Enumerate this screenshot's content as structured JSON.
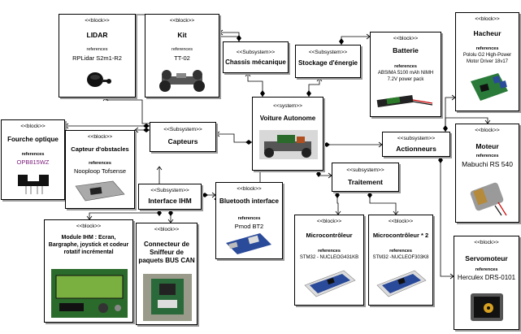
{
  "diagram": {
    "system": {
      "stereotype": "<<system>>",
      "name": "Voiture Autonome"
    },
    "subsystems": {
      "chassis": {
        "stereotype": "<<Subsystem>>",
        "name": "Chassis mécanique"
      },
      "stockage": {
        "stereotype": "<<Subsystem>>",
        "name": "Stockage d'énergie"
      },
      "capteurs": {
        "stereotype": "<<Subsystem>>",
        "name": "Capteurs"
      },
      "ihm": {
        "stereotype": "<<Subsystem>>",
        "name": "Interface IHM"
      },
      "traitement": {
        "stereotype": "<<subsystem>>",
        "name": "Traitement"
      },
      "actionneurs": {
        "stereotype": "<<subsystem>>",
        "name": "Actionneurs"
      }
    },
    "blocks": {
      "lidar": {
        "stereotype": "<<block>>",
        "name": "LIDAR",
        "ref_label": "references",
        "ref": "RPLidar S2m1-R2"
      },
      "kit": {
        "stereotype": "<<block>>",
        "name": "Kit",
        "ref_label": "references",
        "ref": "TT-02"
      },
      "batterie": {
        "stereotype": "<<block>>",
        "name": "Batterie",
        "ref_label": "references",
        "ref": "ABSIMA 5100 mAh NIMH 7.2V power pack"
      },
      "hacheur": {
        "stereotype": "<<block>>",
        "name": "Hacheur",
        "ref_label": "references",
        "ref": "Pololu G2 High-Power Motor Driver 18v17"
      },
      "fourche": {
        "stereotype": "<<block>>",
        "name": "Fourche optique",
        "ref_label": "references",
        "ref": "OPB815WZ"
      },
      "capteur_obs": {
        "stereotype": "<<block>>",
        "name": "Capteur d'obstacles",
        "ref_label": "references",
        "ref": "Nooploop Tofsense"
      },
      "moteur": {
        "stereotype": "<<block>>",
        "name": "Moteur",
        "ref_label": "references",
        "ref": "Mabuchi RS 540"
      },
      "bluetooth": {
        "stereotype": "<<block>>",
        "name": "Bluetooth interface",
        "ref_label": "references",
        "ref": "Pmod BT2"
      },
      "module_ihm": {
        "stereotype": "<<block>>",
        "name": "Module IHM : Ecran, Bargraphe, joystick et codeur rotatif incrémental"
      },
      "connecteur": {
        "stereotype": "<<block>>",
        "name": "Connecteur de Sniffeur de paquets BUS CAN"
      },
      "micro1": {
        "stereotype": "<<block>>",
        "name": "Microcontrôleur",
        "ref_label": "references",
        "ref": "STM32 - NUCLEOG431KB"
      },
      "micro2": {
        "stereotype": "<<block>>",
        "name": "Microcontrôleur * 2",
        "ref_label": "references",
        "ref": "STM32 -NUCLEOF303K8"
      },
      "servo": {
        "stereotype": "<<block>>",
        "name": "Servomoteur",
        "ref_label": "references",
        "ref": "Herculex DRS-0101"
      }
    },
    "colors": {
      "border": "#000000",
      "ref_accent": "#7a1a7a",
      "shadow": "#9a9a9a"
    }
  }
}
